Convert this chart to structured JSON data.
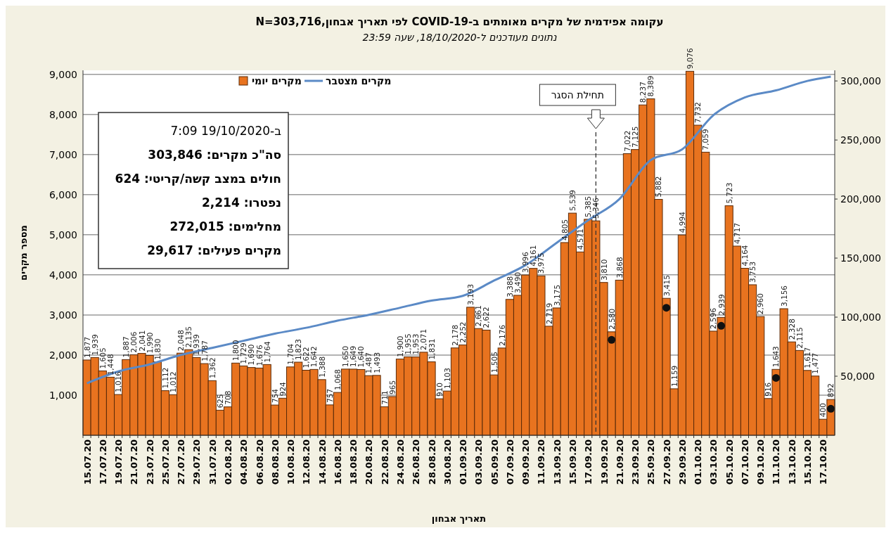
{
  "chart_data": {
    "type": "bar",
    "title": "עקומה אפידמית של מקרים מאומתים ב-COVID-19 לפי תאריך אבחון,N=303,716",
    "subtitle": "נתונים מעודכנים ל-18/10/2020, שעה 23:59",
    "xlabel": "תאריך אבחון",
    "ylabel": "מספר מקרים",
    "categories": [
      "15.07.20",
      null,
      "17.07.20",
      null,
      "19.07.20",
      null,
      "21.07.20",
      null,
      "23.07.20",
      null,
      "25.07.20",
      null,
      "27.07.20",
      null,
      "29.07.20",
      null,
      "31.07.20",
      null,
      "02.08.20",
      null,
      "04.08.20",
      null,
      "06.08.20",
      null,
      "08.08.20",
      null,
      "10.08.20",
      null,
      "12.08.20",
      null,
      "14.08.20",
      null,
      "16.08.20",
      null,
      "18.08.20",
      null,
      "20.08.20",
      null,
      "22.08.20",
      null,
      "24.08.20",
      null,
      "26.08.20",
      null,
      "28.08.20",
      null,
      "30.08.20",
      null,
      "01.09.20",
      null,
      "03.09.20",
      null,
      "05.09.20",
      null,
      "07.09.20",
      null,
      "09.09.20",
      null,
      "11.09.20",
      null,
      "13.09.20",
      null,
      "15.09.20",
      null,
      "17.09.20",
      null,
      "19.09.20",
      null,
      "21.09.20",
      null,
      "23.09.20",
      null,
      "25.09.20",
      null,
      "27.09.20",
      null,
      "29.09.20",
      null,
      "01.10.20",
      null,
      "03.10.20",
      null,
      "05.10.20",
      null,
      "07.10.20",
      null,
      "09.10.20",
      null,
      "11.10.20",
      null,
      "13.10.20",
      null,
      "15.10.20",
      null,
      "17.10.20",
      null
    ],
    "series": [
      {
        "name": "מקרים יומי",
        "color": "#e8731f",
        "value_labels": [
          "1,877",
          "1,939",
          "1,605",
          "1,448",
          "1,016",
          "1,887",
          "2,006",
          "2,041",
          "1,990",
          "1,830",
          "1,112",
          "1,012",
          "2,048",
          "2,135",
          "1,939",
          "1,787",
          "1,362",
          "625",
          "708",
          "1,800",
          "1,729",
          "1,690",
          "1,676",
          "1,764",
          "754",
          "924",
          "1,704",
          "1,823",
          "1,622",
          "1,642",
          "1,388",
          "757",
          "1,068",
          "1,650",
          "1,649",
          "1,640",
          "1,487",
          "1,493",
          "711",
          "965",
          "1,900",
          "1,955",
          "1,953",
          "2,071",
          "1,831",
          "910",
          "1,103",
          "2,178",
          "2,252",
          "3,193",
          "2,661",
          "2,622",
          "1,505",
          "2,176",
          "3,388",
          "3,490",
          "3,996",
          "4,161",
          "3,975",
          "2,719",
          "3,175",
          "4,805",
          "5,539",
          "4,571",
          "5,385",
          "5,346",
          "3,810",
          "2,580",
          "3,868",
          "7,022",
          "7,125",
          "8,237",
          "8,389",
          "5,882",
          "3,415",
          "1,159",
          "4,994",
          "9,076",
          "7,732",
          "7,059",
          "2,596",
          "2,939",
          "5,723",
          "4,717",
          "4,164",
          "3,753",
          "2,960",
          "916",
          "1,643",
          "3,156",
          "2,328",
          "2,115",
          "1,617",
          "1,477",
          "400",
          "892"
        ],
        "values": [
          1877,
          1939,
          1605,
          1448,
          1016,
          1887,
          2006,
          2041,
          1990,
          1830,
          1112,
          1012,
          2048,
          2135,
          1939,
          1787,
          1362,
          625,
          708,
          1800,
          1729,
          1690,
          1676,
          1764,
          754,
          924,
          1704,
          1823,
          1622,
          1642,
          1388,
          757,
          1068,
          1650,
          1649,
          1640,
          1487,
          1493,
          711,
          965,
          1900,
          1955,
          1953,
          2071,
          1831,
          910,
          1103,
          2178,
          2252,
          3193,
          2661,
          2622,
          1505,
          2176,
          3388,
          3490,
          3996,
          4161,
          3975,
          2719,
          3175,
          4805,
          5539,
          4571,
          5385,
          5346,
          3810,
          2580,
          3868,
          7022,
          7125,
          8237,
          8389,
          5882,
          3415,
          1159,
          4994,
          9076,
          7732,
          7059,
          2596,
          2939,
          5723,
          4717,
          4164,
          3753,
          2960,
          916,
          1643,
          3156,
          2328,
          2115,
          1617,
          1477,
          400,
          892
        ]
      },
      {
        "name": "מקרים מצטבר",
        "type": "line",
        "axis": "y2",
        "color": "#5b8ac6",
        "values": [
          44000,
          null,
          null,
          null,
          54000,
          null,
          null,
          null,
          60000,
          null,
          null,
          null,
          68000,
          null,
          null,
          null,
          74000,
          null,
          null,
          null,
          80000,
          null,
          null,
          null,
          86000,
          null,
          null,
          null,
          91000,
          null,
          null,
          null,
          97000,
          null,
          null,
          null,
          102000,
          null,
          null,
          null,
          108000,
          null,
          null,
          null,
          114000,
          null,
          null,
          null,
          118000,
          null,
          null,
          null,
          131000,
          null,
          null,
          null,
          144000,
          null,
          null,
          null,
          163000,
          null,
          null,
          null,
          182000,
          null,
          null,
          null,
          200000,
          null,
          null,
          null,
          233000,
          null,
          null,
          null,
          242000,
          null,
          null,
          null,
          271000,
          null,
          null,
          null,
          286000,
          null,
          null,
          null,
          292000,
          null,
          null,
          null,
          300000,
          null,
          null,
          303700
        ]
      },
      {
        "type": "scatter",
        "color": "#111111",
        "marker": "circle",
        "values": [
          null,
          null,
          null,
          null,
          null,
          null,
          null,
          null,
          null,
          null,
          null,
          null,
          null,
          null,
          null,
          null,
          null,
          null,
          null,
          null,
          null,
          null,
          null,
          null,
          null,
          null,
          null,
          null,
          null,
          null,
          null,
          null,
          null,
          null,
          null,
          null,
          null,
          null,
          null,
          null,
          null,
          null,
          null,
          null,
          null,
          null,
          null,
          null,
          null,
          null,
          null,
          null,
          null,
          null,
          null,
          null,
          null,
          null,
          null,
          null,
          null,
          null,
          null,
          null,
          null,
          null,
          null,
          2380,
          null,
          null,
          null,
          null,
          null,
          null,
          3180,
          null,
          null,
          null,
          null,
          null,
          null,
          2730,
          null,
          null,
          null,
          null,
          null,
          null,
          1430,
          null,
          null,
          null,
          null,
          null,
          null,
          660
        ]
      }
    ],
    "ylim": [
      0,
      9100
    ],
    "yticks": [
      {
        "value": 1000,
        "label": "1,000"
      },
      {
        "value": 2000,
        "label": "2,000"
      },
      {
        "value": 3000,
        "label": "3,000"
      },
      {
        "value": 4000,
        "label": "4,000"
      },
      {
        "value": 5000,
        "label": "5,000"
      },
      {
        "value": 6000,
        "label": "6,000"
      },
      {
        "value": 7000,
        "label": "7,000"
      },
      {
        "value": 8000,
        "label": "8,000"
      },
      {
        "value": 9000,
        "label": "9,000"
      }
    ],
    "y2lim": [
      0,
      309000
    ],
    "y2ticks": [
      {
        "value": 50000,
        "label": "50,000"
      },
      {
        "value": 100000,
        "label": "100,000"
      },
      {
        "value": 150000,
        "label": "150,000"
      },
      {
        "value": 200000,
        "label": "200,000"
      },
      {
        "value": 250000,
        "label": "250,000"
      },
      {
        "value": 300000,
        "label": "300,000"
      }
    ],
    "grid": "y",
    "legend": "top left",
    "annotations": [
      "תחילת הסגר",
      "ב-19/10/2020 7:09",
      "סה\"כ מקרים: 303,846",
      "חולים במצב קשה/קריטי: 624",
      "נפטרו: 2,214",
      "מחלימים: 272,015",
      "מקרים פעילים: 29,617"
    ]
  }
}
